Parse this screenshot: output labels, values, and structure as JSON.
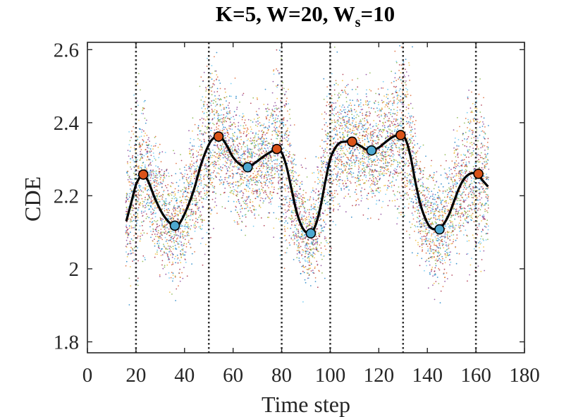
{
  "chart_data": {
    "type": "line",
    "title": {
      "part1": "K=5, W=20, W",
      "subscript": "s",
      "part2": "=10"
    },
    "xlabel": "Time step",
    "ylabel": "CDE",
    "xlim": [
      0,
      180
    ],
    "ylim": [
      1.77,
      2.62
    ],
    "xticks": [
      0,
      20,
      40,
      60,
      80,
      100,
      120,
      140,
      160,
      180
    ],
    "xtick_labels": [
      "0",
      "20",
      "40",
      "60",
      "80",
      "100",
      "120",
      "140",
      "160",
      "180"
    ],
    "yticks": [
      1.8,
      2.0,
      2.2,
      2.4,
      2.6
    ],
    "ytick_labels": [
      "1.8",
      "2",
      "2.2",
      "2.4",
      "2.6"
    ],
    "grid": false,
    "vertical_lines": [
      20,
      50,
      80,
      100,
      130,
      160
    ],
    "mean_curve": {
      "x": [
        16,
        18,
        20,
        22,
        23,
        25,
        28,
        31,
        34,
        36,
        38,
        41,
        44,
        47,
        50,
        52,
        54,
        56,
        58,
        60,
        63,
        66,
        69,
        72,
        75,
        78,
        80,
        82,
        84,
        86,
        88,
        90,
        92,
        94,
        96,
        98,
        100,
        102,
        104,
        106,
        109,
        112,
        115,
        117,
        120,
        123,
        126,
        129,
        131,
        133,
        135,
        137,
        139,
        141,
        143,
        145,
        147,
        149,
        151,
        153,
        155,
        157,
        159,
        161,
        163,
        165
      ],
      "y": [
        2.13,
        2.18,
        2.23,
        2.255,
        2.258,
        2.24,
        2.19,
        2.15,
        2.125,
        2.118,
        2.125,
        2.165,
        2.22,
        2.29,
        2.34,
        2.358,
        2.362,
        2.352,
        2.33,
        2.305,
        2.285,
        2.278,
        2.29,
        2.305,
        2.318,
        2.328,
        2.318,
        2.28,
        2.22,
        2.16,
        2.12,
        2.1,
        2.097,
        2.12,
        2.17,
        2.24,
        2.3,
        2.33,
        2.345,
        2.348,
        2.348,
        2.338,
        2.326,
        2.324,
        2.332,
        2.348,
        2.362,
        2.366,
        2.355,
        2.31,
        2.24,
        2.18,
        2.14,
        2.115,
        2.108,
        2.11,
        2.125,
        2.15,
        2.185,
        2.22,
        2.245,
        2.258,
        2.262,
        2.255,
        2.24,
        2.225
      ]
    },
    "series": [
      {
        "name": "",
        "color": "#D95319",
        "x": [
          23,
          54,
          78,
          109,
          129,
          161
        ],
        "y": [
          2.258,
          2.362,
          2.328,
          2.348,
          2.366,
          2.26
        ]
      },
      {
        "name": "",
        "color": "#4DA8D0",
        "x": [
          36,
          66,
          92,
          117,
          145
        ],
        "y": [
          2.118,
          2.278,
          2.097,
          2.324,
          2.108
        ]
      }
    ],
    "scatter_cloud": {
      "description_colors": [
        "#0072BD",
        "#D95319",
        "#EDB120",
        "#7E2F8E",
        "#77AC30",
        "#4DBEEE",
        "#A2142F"
      ]
    }
  }
}
